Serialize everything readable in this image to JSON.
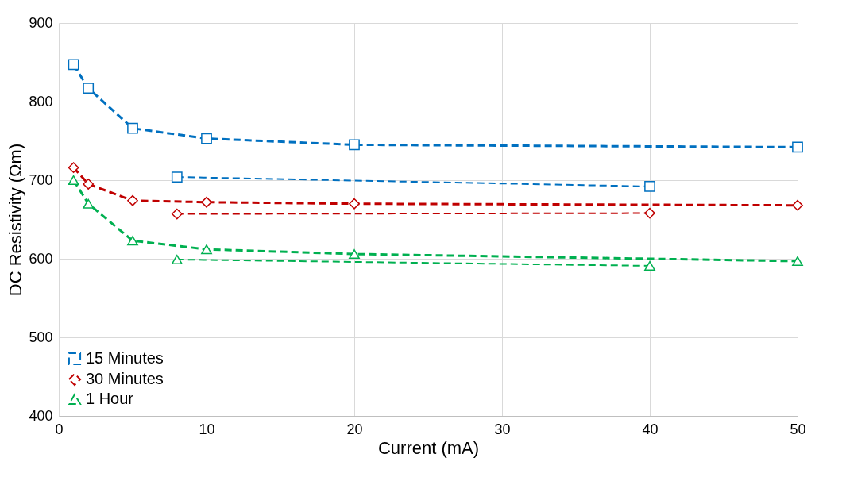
{
  "chart_data": {
    "type": "line",
    "xlabel": "Current (mA)",
    "ylabel": "DC Resistivity (Ωm)",
    "xlim": [
      0,
      50
    ],
    "xticks": [
      0,
      10,
      20,
      30,
      40,
      50
    ],
    "ylim": [
      400,
      900
    ],
    "yticks": [
      400,
      500,
      600,
      700,
      800,
      900
    ],
    "grid": true,
    "legend": "bottom left",
    "series": [
      {
        "name": "15 Minutes",
        "color": "#0070c0",
        "marker": "square",
        "line_style": "dashed",
        "x": [
          1,
          2,
          5,
          10,
          20,
          50
        ],
        "values": [
          847,
          817,
          766,
          753,
          745,
          742
        ]
      },
      {
        "name": "30 Minutes",
        "color": "#c00000",
        "marker": "diamond",
        "line_style": "dashed",
        "x": [
          1,
          2,
          5,
          10,
          20,
          50
        ],
        "values": [
          716,
          695,
          674,
          672,
          670,
          668
        ]
      },
      {
        "name": "1 Hour",
        "color": "#00b050",
        "marker": "triangle",
        "line_style": "dashed",
        "x": [
          1,
          2,
          5,
          10,
          20,
          50
        ],
        "values": [
          700,
          670,
          623,
          612,
          606,
          597
        ]
      },
      {
        "color": "#0070c0",
        "marker": "square",
        "line_style": "dashed",
        "x": [
          8,
          40
        ],
        "values": [
          704,
          692
        ]
      },
      {
        "color": "#c00000",
        "marker": "diamond",
        "line_style": "dashed",
        "x": [
          8,
          40
        ],
        "values": [
          657,
          658
        ]
      },
      {
        "color": "#00b050",
        "marker": "triangle",
        "line_style": "dashed",
        "x": [
          8,
          40
        ],
        "values": [
          599,
          591
        ]
      }
    ]
  }
}
